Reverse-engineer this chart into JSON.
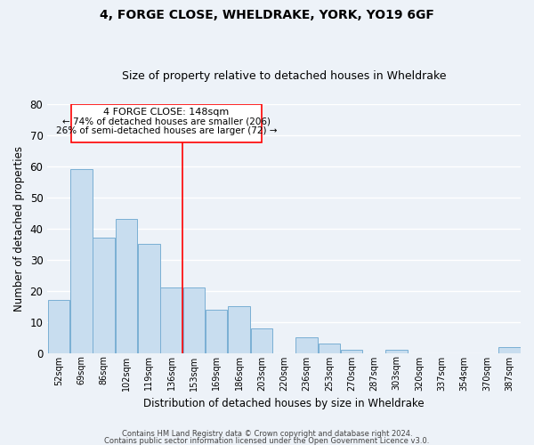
{
  "title1": "4, FORGE CLOSE, WHELDRAKE, YORK, YO19 6GF",
  "title2": "Size of property relative to detached houses in Wheldrake",
  "xlabel": "Distribution of detached houses by size in Wheldrake",
  "ylabel": "Number of detached properties",
  "bin_labels": [
    "52sqm",
    "69sqm",
    "86sqm",
    "102sqm",
    "119sqm",
    "136sqm",
    "153sqm",
    "169sqm",
    "186sqm",
    "203sqm",
    "220sqm",
    "236sqm",
    "253sqm",
    "270sqm",
    "287sqm",
    "303sqm",
    "320sqm",
    "337sqm",
    "354sqm",
    "370sqm",
    "387sqm"
  ],
  "bar_heights": [
    17,
    59,
    37,
    43,
    35,
    21,
    21,
    14,
    15,
    8,
    0,
    5,
    3,
    1,
    0,
    1,
    0,
    0,
    0,
    0,
    2
  ],
  "bar_color": "#c8ddef",
  "bar_edge_color": "#7aafd4",
  "ylim": [
    0,
    80
  ],
  "yticks": [
    0,
    10,
    20,
    30,
    40,
    50,
    60,
    70,
    80
  ],
  "property_line_bin": 6,
  "property_label": "4 FORGE CLOSE: 148sqm",
  "annotation_line1": "← 74% of detached houses are smaller (206)",
  "annotation_line2": "26% of semi-detached houses are larger (72) →",
  "footer1": "Contains HM Land Registry data © Crown copyright and database right 2024.",
  "footer2": "Contains public sector information licensed under the Open Government Licence v3.0.",
  "bg_color": "#edf2f8",
  "grid_color": "#ffffff",
  "title_fontsize": 10,
  "subtitle_fontsize": 9
}
